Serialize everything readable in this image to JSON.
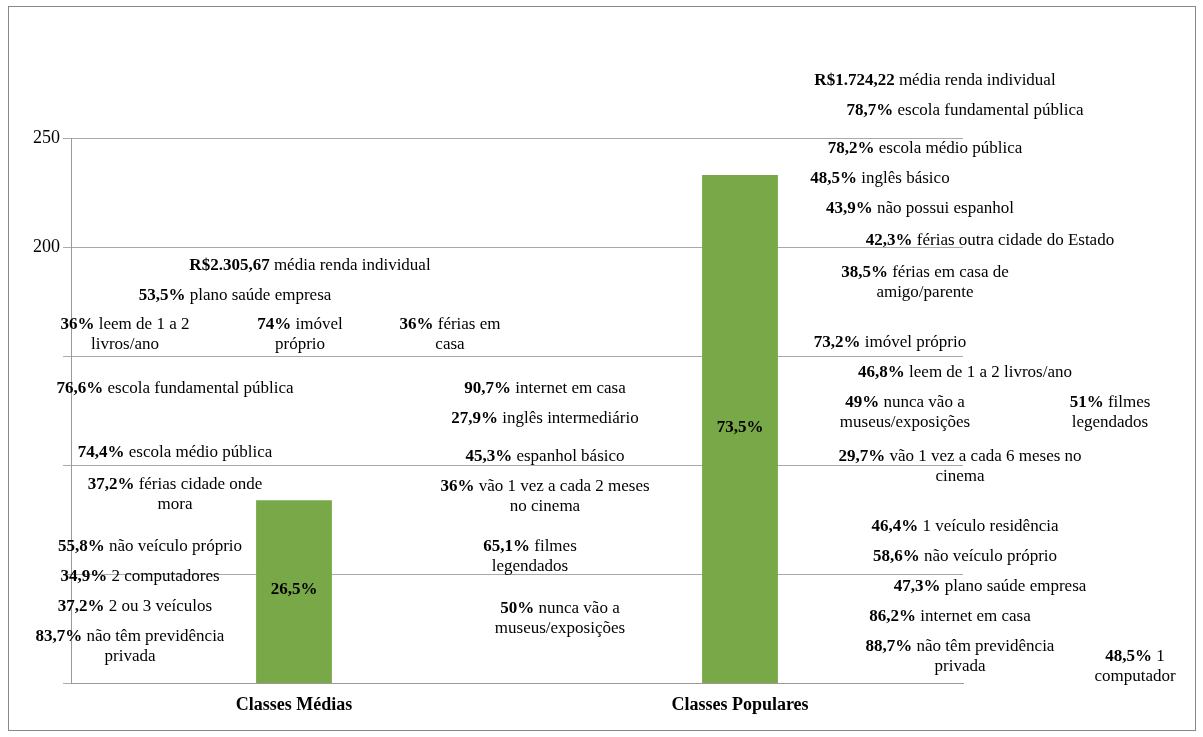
{
  "chart_data": {
    "type": "bar",
    "categories": [
      "Classes Médias",
      "Classes Populares"
    ],
    "values": [
      84,
      233
    ],
    "color": "#78a848",
    "ylim": [
      0,
      250
    ],
    "yticks": [
      {
        "value": 0,
        "label": null
      },
      {
        "value": 50,
        "label": null
      },
      {
        "value": 100,
        "label": null
      },
      {
        "value": 150,
        "label": null
      },
      200,
      250
    ],
    "grid": "y",
    "legend": false,
    "annotations": [
      "R$2.305,67 média renda individual",
      "53,5% plano saúde empresa",
      "36% leem de 1 a 2 livros/ano",
      "74% imóvel próprio",
      "36% férias em casa",
      "76,6% escola fundamental pública",
      "74,4% escola médio pública",
      "37,2% férias cidade onde mora",
      "55,8% não veículo próprio",
      "34,9% 2 computadores",
      "37,2% 2 ou 3 veículos",
      "83,7% não têm previdência privada",
      "90,7% internet em casa",
      "27,9% inglês intermediário",
      "45,3% espanhol básico",
      "36% vão 1 vez a cada 2 meses no cinema",
      "65,1% filmes legendados",
      "50% nunca vão a museus/exposições",
      "R$1.724,22 média renda individual",
      "78,7% escola fundamental pública",
      "78,2% escola médio pública",
      "48,5% inglês básico",
      "43,9% não possui espanhol",
      "42,3% férias outra cidade do Estado",
      "38,5% férias em casa de amigo/parente",
      "73,2% imóvel próprio",
      "46,8% leem de 1 a 2 livros/ano",
      "49% nunca vão a museus/exposições",
      "51% filmes legendados",
      "29,7% vão 1 vez a cada 6 meses no cinema",
      "46,4% 1 veículo residência",
      "58,6% não veículo próprio",
      "47,3% plano saúde empresa",
      "86,2% internet em casa",
      "88,7% não têm previdência privada",
      "48,5% 1 computador",
      "26,5%",
      "73,5%"
    ]
  }
}
